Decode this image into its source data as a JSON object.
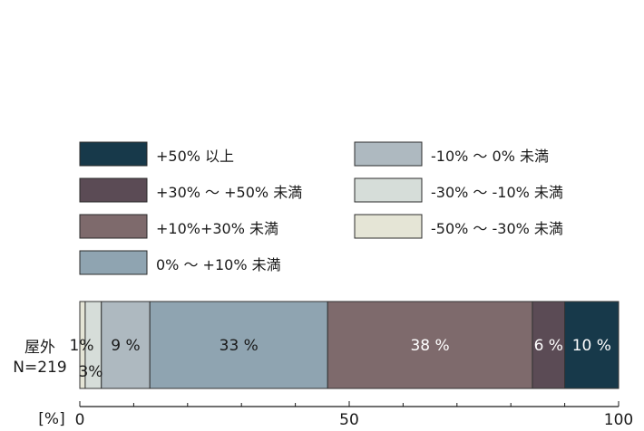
{
  "chart_data": {
    "type": "bar",
    "orientation": "horizontal",
    "stacked": true,
    "xlim": [
      0,
      100
    ],
    "x_ticks": [
      0,
      50,
      100
    ],
    "x_unit_label": "[%]",
    "category_label_lines": [
      "屋外",
      "N=219"
    ],
    "legend_placement": "top",
    "series": [
      {
        "name": "-50% ～ -30% 未満",
        "value": 1,
        "label": "1%",
        "color": "#e5e5d6"
      },
      {
        "name": "-30% ～ -10% 未満",
        "value": 3,
        "label": "3%",
        "color": "#d6ddd9"
      },
      {
        "name": "-10% ～ 0% 未満",
        "value": 9,
        "label": "9 %",
        "color": "#aeb9c0"
      },
      {
        "name": "0% ～ +10% 未満",
        "value": 33,
        "label": "33 %",
        "color": "#8fa4b1"
      },
      {
        "name": "+10%+30% 未満",
        "value": 38,
        "label": "38 %",
        "color": "#7e6a6c"
      },
      {
        "name": "+30% ～ +50% 未満",
        "value": 6,
        "label": "6 %",
        "color": "#5b4b55"
      },
      {
        "name": "+50% 以上",
        "value": 10,
        "label": "10 %",
        "color": "#17394a"
      }
    ],
    "legend_columns": [
      [
        "+50% 以上",
        "+30% ～ +50% 未満",
        "+10%+30% 未満",
        "0% ～ +10% 未満"
      ],
      [
        "-10% ～ 0% 未満",
        "-30% ～ -10% 未満",
        "-50% ～ -30% 未満"
      ]
    ]
  }
}
